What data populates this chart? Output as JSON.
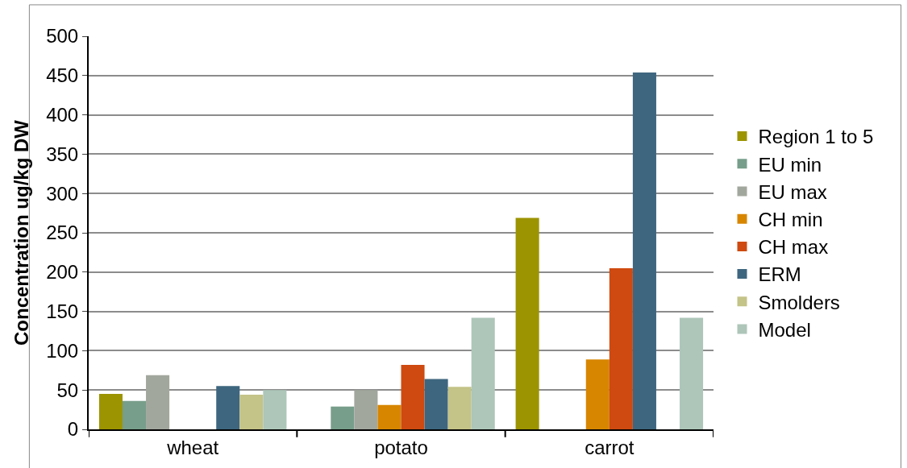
{
  "chart_data": {
    "type": "bar",
    "ylabel": "Concentration ug/kg DW",
    "categories": [
      "wheat",
      "potato",
      "carrot"
    ],
    "ylim": [
      0,
      500
    ],
    "yticks": [
      0,
      50,
      100,
      150,
      200,
      250,
      300,
      350,
      400,
      450,
      500
    ],
    "grid": "y",
    "legend": "right",
    "series": [
      {
        "name": "Region 1 to 5",
        "color": "#9c9400",
        "values": [
          45,
          null,
          269
        ]
      },
      {
        "name": "EU min",
        "color": "#779e8a",
        "values": [
          36,
          29,
          null
        ]
      },
      {
        "name": "EU max",
        "color": "#a2a79d",
        "values": [
          69,
          50,
          null
        ]
      },
      {
        "name": "CH min",
        "color": "#d78600",
        "values": [
          null,
          31,
          89
        ]
      },
      {
        "name": "CH max",
        "color": "#ce4a10",
        "values": [
          null,
          82,
          205
        ]
      },
      {
        "name": "ERM",
        "color": "#3e667f",
        "values": [
          55,
          64,
          454
        ]
      },
      {
        "name": "Smolders",
        "color": "#c4c388",
        "values": [
          44,
          54,
          null
        ]
      },
      {
        "name": "Model",
        "color": "#adc6b9",
        "values": [
          50,
          142,
          142
        ]
      }
    ]
  }
}
